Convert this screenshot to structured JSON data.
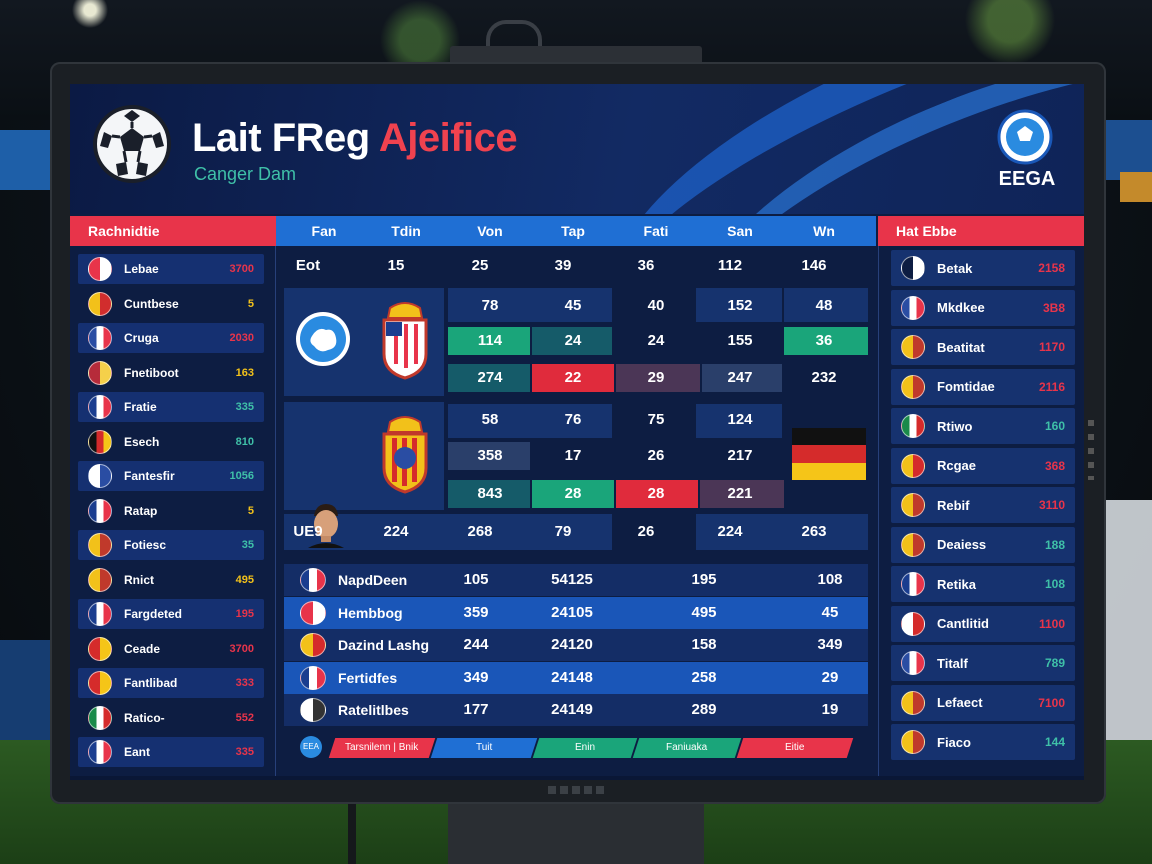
{
  "header": {
    "title_white": "Lait FReg",
    "title_red": "Ajeifice",
    "subtitle": "Canger Dam",
    "brand": "EEGA"
  },
  "left_panel": {
    "title": "Rachnidtie",
    "rows": [
      {
        "name": "Lebae",
        "value": "3700",
        "flag": [
          "#e8344a",
          "#ffffff"
        ],
        "value_color": "#e8344a"
      },
      {
        "name": "Cuntbese",
        "value": "5",
        "flag": [
          "#f2c11a",
          "#d12d2d"
        ],
        "value_color": "#f2c11a"
      },
      {
        "name": "Cruga",
        "value": "2030",
        "flag": [
          "#2a4da3",
          "#ffffff",
          "#e8344a"
        ],
        "value_color": "#e8344a"
      },
      {
        "name": "Fnetiboot",
        "value": "163",
        "flag": [
          "#b62b3a",
          "#f5d04a"
        ],
        "value_color": "#f2c11a"
      },
      {
        "name": "Fratie",
        "value": "335",
        "flag": [
          "#1a3d8f",
          "#ffffff",
          "#e8344a"
        ],
        "value_color": "#3fc0a8"
      },
      {
        "name": "Esech",
        "value": "810",
        "flag": [
          "#111111",
          "#d52b2b",
          "#f5c518"
        ],
        "value_color": "#3fc0a8"
      },
      {
        "name": "Fantesfir",
        "value": "1056",
        "flag": [
          "#ffffff",
          "#2a4da3"
        ],
        "value_color": "#3fc0a8"
      },
      {
        "name": "Ratap",
        "value": "5",
        "flag": [
          "#1a3d8f",
          "#ffffff",
          "#e8344a"
        ],
        "value_color": "#f2c11a"
      },
      {
        "name": "Fotiesc",
        "value": "35",
        "flag": [
          "#f2c11a",
          "#c0392b"
        ],
        "value_color": "#3fc0a8"
      },
      {
        "name": "Rnict",
        "value": "495",
        "flag": [
          "#f2c11a",
          "#c0392b"
        ],
        "value_color": "#f2c11a"
      },
      {
        "name": "Fargdeted",
        "value": "195",
        "flag": [
          "#1a3d8f",
          "#ffffff",
          "#e8344a"
        ],
        "value_color": "#e8344a"
      },
      {
        "name": "Ceade",
        "value": "3700",
        "flag": [
          "#d52b2b",
          "#f5c518"
        ],
        "value_color": "#e8344a"
      },
      {
        "name": "Fantlibad",
        "value": "333",
        "flag": [
          "#d52b2b",
          "#f5c518"
        ],
        "value_color": "#e8344a"
      },
      {
        "name": "Ratico-",
        "value": "552",
        "flag": [
          "#1a8a4a",
          "#ffffff",
          "#d52b2b"
        ],
        "value_color": "#e8344a"
      },
      {
        "name": "Eant",
        "value": "335",
        "flag": [
          "#1a3d8f",
          "#ffffff",
          "#e8344a"
        ],
        "value_color": "#e8344a"
      }
    ]
  },
  "right_panel": {
    "title": "Hat Ebbe",
    "rows": [
      {
        "name": "Betak",
        "value": "2158",
        "flag": [
          "#0d1d42",
          "#ffffff"
        ],
        "value_color": "#e8344a"
      },
      {
        "name": "Mkdkee",
        "value": "3B8",
        "flag": [
          "#2a4da3",
          "#ffffff",
          "#e8344a"
        ],
        "value_color": "#e8344a"
      },
      {
        "name": "Beatitat",
        "value": "1170",
        "flag": [
          "#f2c11a",
          "#c0392b"
        ],
        "value_color": "#e8344a"
      },
      {
        "name": "Fomtidae",
        "value": "2116",
        "flag": [
          "#f2c11a",
          "#c0392b"
        ],
        "value_color": "#e8344a"
      },
      {
        "name": "Rtiwo",
        "value": "160",
        "flag": [
          "#1a8a4a",
          "#ffffff",
          "#d52b2b"
        ],
        "value_color": "#3fc0a8"
      },
      {
        "name": "Rcgae",
        "value": "368",
        "flag": [
          "#f2c11a",
          "#d52b2b"
        ],
        "value_color": "#e8344a"
      },
      {
        "name": "Rebif",
        "value": "3110",
        "flag": [
          "#f2c11a",
          "#c0392b"
        ],
        "value_color": "#e8344a"
      },
      {
        "name": "Deaiess",
        "value": "188",
        "flag": [
          "#f2c11a",
          "#c0392b"
        ],
        "value_color": "#3fc0a8"
      },
      {
        "name": "Retika",
        "value": "108",
        "flag": [
          "#1a3d8f",
          "#ffffff",
          "#e8344a"
        ],
        "value_color": "#3fc0a8"
      },
      {
        "name": "Cantlitid",
        "value": "1100",
        "flag": [
          "#ffffff",
          "#d52b2b"
        ],
        "value_color": "#e8344a"
      },
      {
        "name": "Titalf",
        "value": "789",
        "flag": [
          "#2a4da3",
          "#ffffff",
          "#e8344a"
        ],
        "value_color": "#3fc0a8"
      },
      {
        "name": "Lefaect",
        "value": "7100",
        "flag": [
          "#f2c11a",
          "#c0392b"
        ],
        "value_color": "#e8344a"
      },
      {
        "name": "Fiaco",
        "value": "144",
        "flag": [
          "#f2c11a",
          "#c0392b"
        ],
        "value_color": "#3fc0a8"
      }
    ]
  },
  "grid": {
    "columns": [
      "Fan",
      "Tdin",
      "Von",
      "Tap",
      "Fati",
      "San",
      "Wn"
    ],
    "first_row": [
      "Eot",
      "15",
      "25",
      "39",
      "36",
      "112",
      "146"
    ],
    "block1": [
      [
        "78",
        "45",
        "40",
        "152",
        "48"
      ],
      [
        "114",
        "24",
        "24",
        "155",
        "36"
      ],
      [
        "274",
        "22",
        "29",
        "247",
        "232"
      ]
    ],
    "block2": [
      [
        "58",
        "76",
        "75",
        "124"
      ],
      [
        "358",
        "17",
        "26",
        "217"
      ],
      [
        "843",
        "28",
        "28",
        "221"
      ]
    ],
    "summary_row": [
      "UE9",
      "224",
      "268",
      "79",
      "26",
      "224",
      "263"
    ]
  },
  "table": {
    "rows": [
      {
        "name": "NapdDeen",
        "values": [
          "105",
          "54125",
          "195",
          "108"
        ],
        "flag": [
          "#1a3d8f",
          "#ffffff",
          "#e8344a"
        ]
      },
      {
        "name": "Hembbog",
        "values": [
          "359",
          "24105",
          "495",
          "45"
        ],
        "flag": [
          "#e8344a",
          "#ffffff"
        ]
      },
      {
        "name": "Dazind Lashg",
        "values": [
          "244",
          "24120",
          "158",
          "349"
        ],
        "flag": [
          "#f2c11a",
          "#d52b2b"
        ]
      },
      {
        "name": "Fertidfes",
        "values": [
          "349",
          "24148",
          "258",
          "29"
        ],
        "flag": [
          "#1a3d8f",
          "#ffffff",
          "#e8344a"
        ]
      },
      {
        "name": "Ratelitlbes",
        "values": [
          "177",
          "24149",
          "289",
          "19"
        ],
        "flag": [
          "#ffffff",
          "#333333"
        ]
      }
    ]
  },
  "legend": {
    "icon": "EEA",
    "segments": [
      {
        "label": "Tarsnilenn | Bnik",
        "color": "#e8344a"
      },
      {
        "label": "Tuit",
        "color": "#1f6fd4"
      },
      {
        "label": "Enin",
        "color": "#1aa57a"
      },
      {
        "label": "Faniuaka",
        "color": "#1aa57a"
      },
      {
        "label": "Eitie",
        "color": "#e8344a"
      }
    ]
  },
  "icons": [
    "soccer-ball-icon",
    "brand-ball-icon",
    "crest-icon",
    "flag-icon",
    "player-avatar-icon"
  ]
}
